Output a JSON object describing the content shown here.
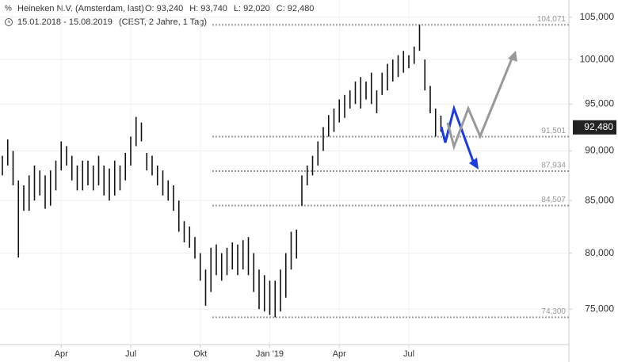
{
  "chart_data": {
    "type": "hilo",
    "title": "Heineken N.V. (Amsterdam, last)",
    "quote": [
      {
        "label": "O:",
        "value": "93,240"
      },
      {
        "label": "H:",
        "value": "93,740"
      },
      {
        "label": "L:",
        "value": "92,020"
      },
      {
        "label": "C:",
        "value": "92,480"
      }
    ],
    "subtitle": "15.01.2018 - 15.08.2019",
    "subtitle_note": "(CEST, 2 Jahre, 1 Tag)",
    "color": "#111111",
    "log_scale": true,
    "grid": true,
    "categories": [
      null,
      null,
      null,
      null,
      null,
      null,
      null,
      null,
      null,
      null,
      null,
      "Apr",
      null,
      null,
      null,
      null,
      null,
      null,
      null,
      null,
      null,
      null,
      null,
      null,
      "Jul",
      null,
      null,
      null,
      null,
      null,
      null,
      null,
      null,
      null,
      null,
      null,
      null,
      "Okt",
      null,
      null,
      null,
      null,
      null,
      null,
      null,
      null,
      null,
      null,
      null,
      null,
      "Jan '19",
      null,
      null,
      null,
      null,
      null,
      null,
      null,
      null,
      null,
      null,
      null,
      null,
      "Apr",
      null,
      null,
      null,
      null,
      null,
      null,
      null,
      null,
      null,
      null,
      null,
      null,
      "Jul",
      null,
      null,
      null,
      null,
      null,
      null
    ],
    "highs": [
      89.5,
      91.2,
      90,
      87,
      86.5,
      87.5,
      88.5,
      88,
      87.5,
      88,
      89,
      91,
      90.5,
      89.5,
      88.5,
      89,
      89,
      88.5,
      89.5,
      88.5,
      88.2,
      89,
      88.5,
      89.8,
      91.5,
      93.6,
      93,
      89.8,
      89.5,
      88.5,
      88,
      87,
      86.5,
      85,
      83,
      82.5,
      81.5,
      80,
      78.5,
      80.5,
      80.8,
      80,
      80.5,
      81,
      80.8,
      81.2,
      81.5,
      80,
      78.5,
      78,
      77.5,
      77.5,
      78.5,
      80,
      82,
      82.2,
      87.5,
      88.5,
      89.5,
      91,
      92.5,
      93.8,
      94.5,
      95.5,
      96,
      96.5,
      97.5,
      98,
      97.5,
      98.5,
      96.5,
      98.5,
      99.5,
      100,
      100.5,
      101,
      100.5,
      101.5,
      104.07,
      100,
      97,
      94.5,
      93.74
    ],
    "lows": [
      87.5,
      88.5,
      86.5,
      79.6,
      84,
      84,
      85,
      85.5,
      84.2,
      84.5,
      86,
      88,
      88.5,
      87,
      86,
      86,
      86.5,
      86,
      86.5,
      85.5,
      85,
      85.5,
      86,
      87,
      88.5,
      90.5,
      91,
      88,
      87.5,
      86.5,
      85.5,
      85,
      84,
      82,
      81,
      80.5,
      79.5,
      77.5,
      75.3,
      76.5,
      78,
      77.5,
      78,
      78.5,
      78,
      78.5,
      78,
      76.5,
      75,
      74.8,
      74.5,
      74.3,
      74.8,
      76,
      78.5,
      79.5,
      84.5,
      86.5,
      87.5,
      88.5,
      90,
      91.5,
      92,
      93,
      93.5,
      94.5,
      95,
      94.5,
      95.5,
      95,
      94,
      96,
      96.5,
      97.5,
      98,
      98.5,
      99,
      99.5,
      101,
      96.5,
      94,
      91.5,
      92.02
    ],
    "ylim": [
      72.0,
      107.1
    ],
    "yticks": [
      {
        "value": 75,
        "label": "75,000"
      },
      {
        "value": 80,
        "label": "80,000"
      },
      {
        "value": 85,
        "label": "85,000"
      },
      {
        "value": 90,
        "label": "90,000"
      },
      {
        "value": 95,
        "label": "95,000"
      },
      {
        "value": 100,
        "label": "100,000"
      },
      {
        "value": 105,
        "label": "105,000"
      }
    ],
    "levels": [
      {
        "value": 104.071,
        "label": "104,071"
      },
      {
        "value": 91.501,
        "label": "91,501"
      },
      {
        "value": 87.934,
        "label": "87,934"
      },
      {
        "value": 84.507,
        "label": "84,507"
      },
      {
        "value": 74.3,
        "label": "74,300"
      }
    ],
    "last": {
      "value": 92.48,
      "label": "92,480"
    }
  }
}
